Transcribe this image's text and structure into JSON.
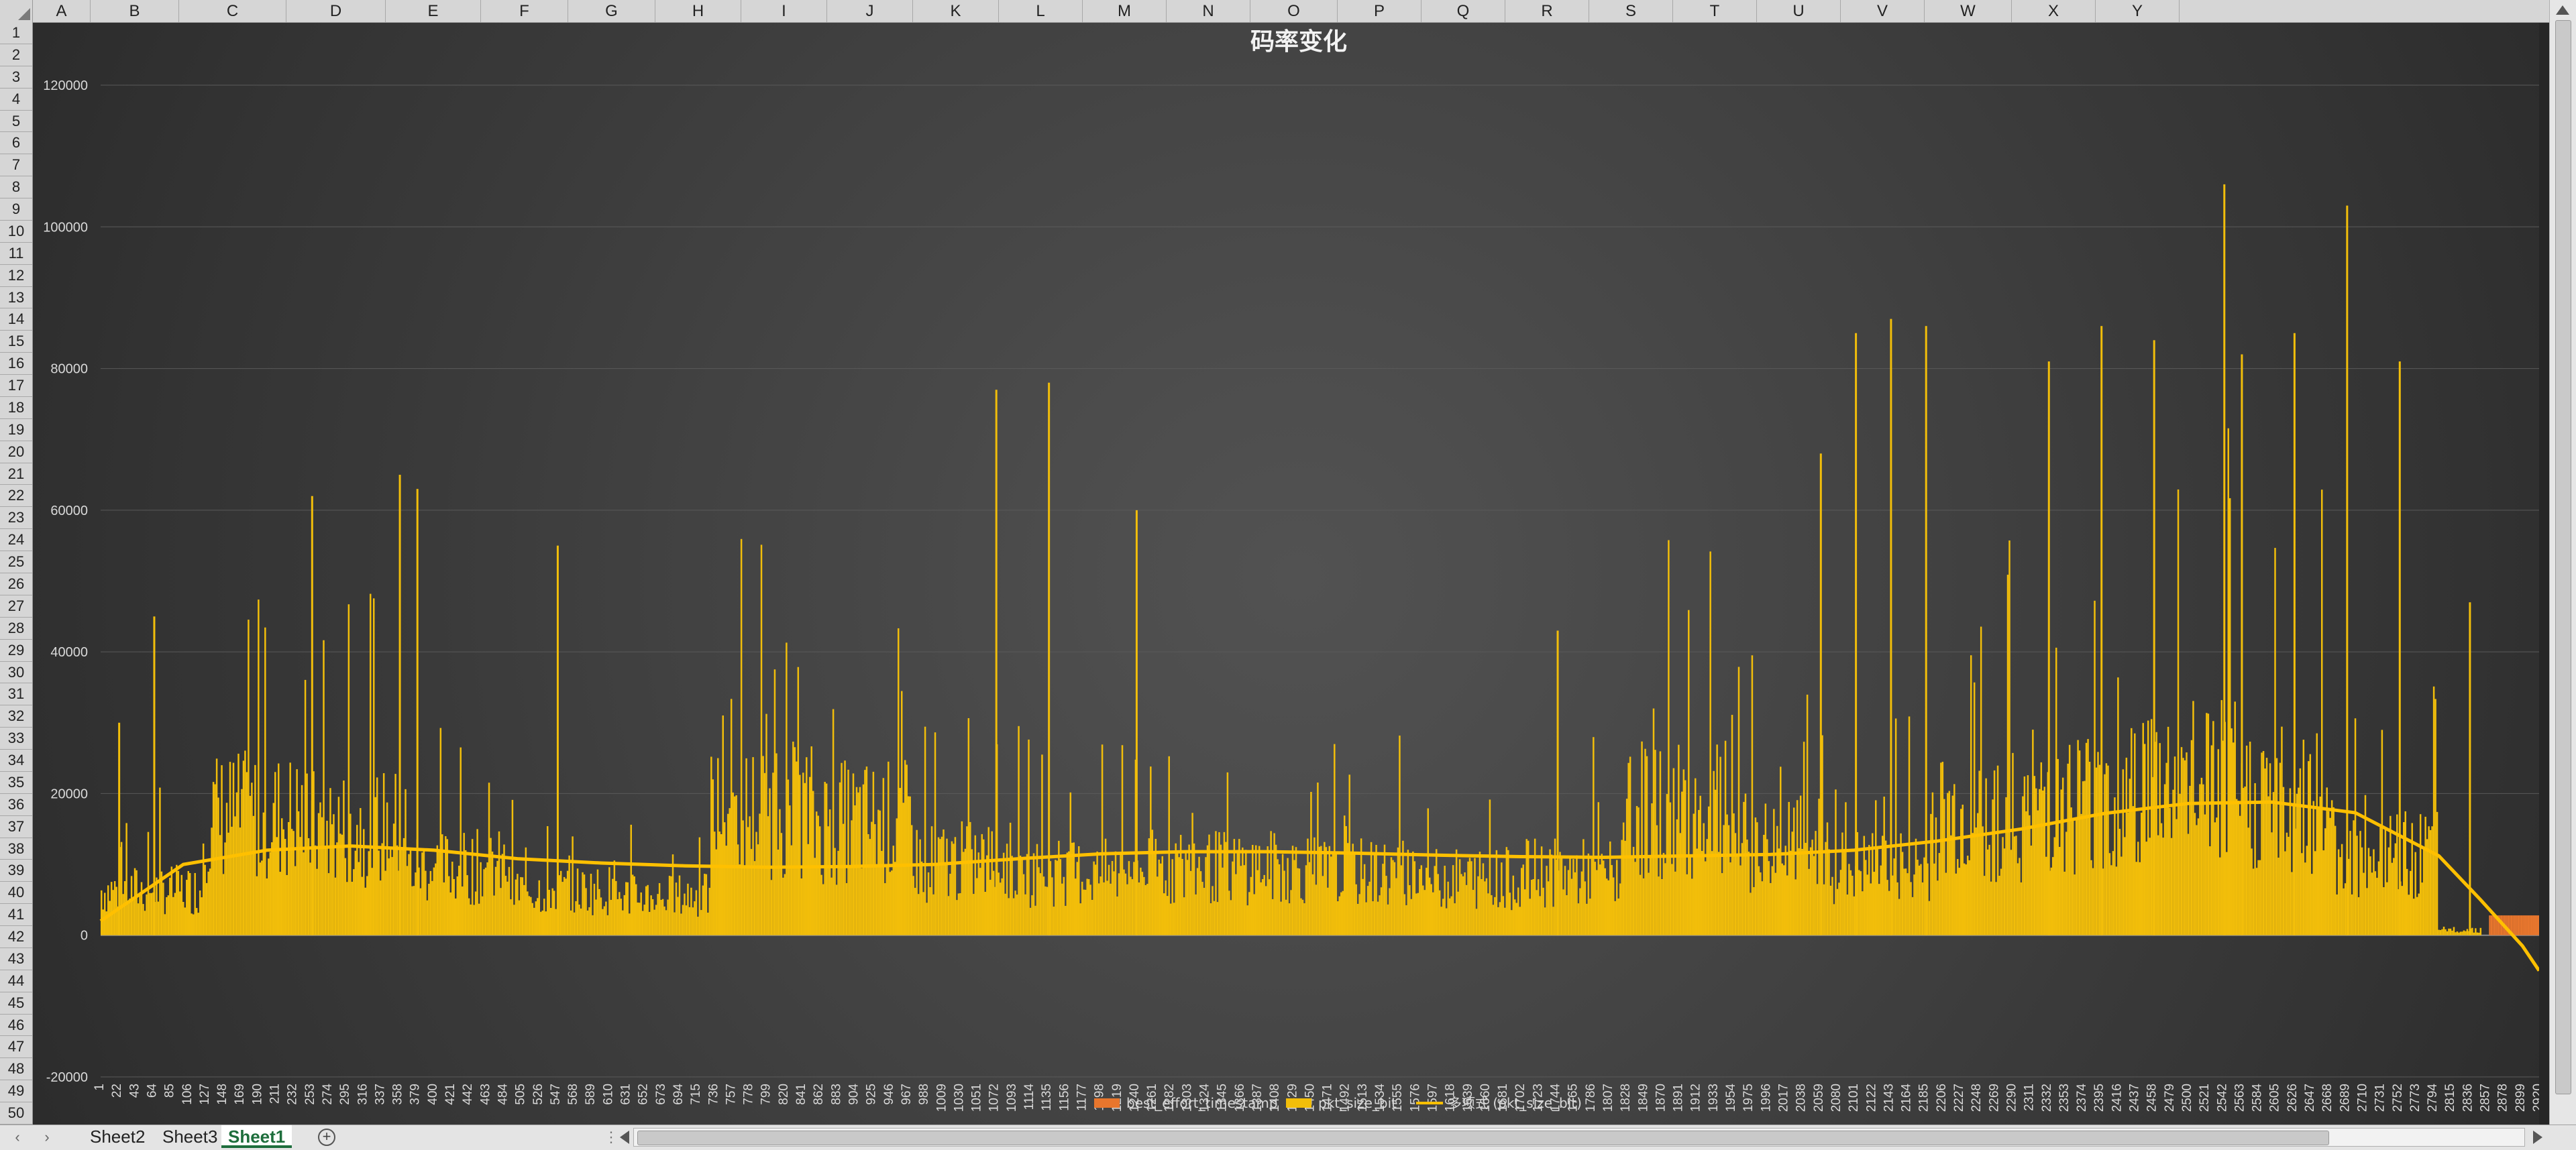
{
  "spreadsheet": {
    "columns": [
      "A",
      "B",
      "C",
      "D",
      "E",
      "F",
      "G",
      "H",
      "I",
      "J",
      "K",
      "L",
      "M",
      "N",
      "O",
      "P",
      "Q",
      "R",
      "S",
      "T",
      "U",
      "V",
      "W",
      "X",
      "Y"
    ],
    "rows": [
      "1",
      "2",
      "3",
      "4",
      "5",
      "6",
      "7",
      "8",
      "9",
      "10",
      "11",
      "12",
      "13",
      "14",
      "15",
      "16",
      "17",
      "18",
      "19",
      "20",
      "21",
      "22",
      "23",
      "24",
      "25",
      "26",
      "27",
      "28",
      "29",
      "30",
      "31",
      "32",
      "33",
      "34",
      "35",
      "36",
      "37",
      "38",
      "39",
      "40",
      "41",
      "42",
      "43",
      "44",
      "45",
      "46",
      "47",
      "48",
      "49",
      "50"
    ],
    "sheets": [
      "Sheet2",
      "Sheet3",
      "Sheet1"
    ],
    "active_sheet": "Sheet1"
  },
  "colors": {
    "bar": "#f2be0a",
    "best_effort": "#e8762d",
    "trend": "#ffc000"
  },
  "chart_data": {
    "type": "bar",
    "title": "码率变化",
    "xlabel": "",
    "ylabel": "",
    "ylim": [
      -20000,
      120000
    ],
    "yticks": [
      -20000,
      0,
      20000,
      40000,
      60000,
      80000,
      100000,
      120000
    ],
    "ytick_labels": [
      "-20000",
      "0",
      "20000",
      "40000",
      "60000",
      "80000",
      "100000",
      "120000"
    ],
    "xlim": [
      1,
      2920
    ],
    "x_tick_labels": [
      "1",
      "22",
      "43",
      "64",
      "85",
      "106",
      "127",
      "148",
      "169",
      "190",
      "211",
      "232",
      "253",
      "274",
      "295",
      "316",
      "337",
      "358",
      "379",
      "400",
      "421",
      "442",
      "463",
      "484",
      "505",
      "526",
      "547",
      "568",
      "589",
      "610",
      "631",
      "652",
      "673",
      "694",
      "715",
      "736",
      "757",
      "778",
      "799",
      "820",
      "841",
      "862",
      "883",
      "904",
      "925",
      "946",
      "967",
      "988",
      "1009",
      "1030",
      "1051",
      "1072",
      "1093",
      "1114",
      "1135",
      "1156",
      "1177",
      "1198",
      "1219",
      "1240",
      "1261",
      "1282",
      "1303",
      "1324",
      "1345",
      "1366",
      "1387",
      "1408",
      "1429",
      "1450",
      "1471",
      "1492",
      "1513",
      "1534",
      "1555",
      "1576",
      "1597",
      "1618",
      "1639",
      "1660",
      "1681",
      "1702",
      "1723",
      "1744",
      "1765",
      "1786",
      "1807",
      "1828",
      "1849",
      "1870",
      "1891",
      "1912",
      "1933",
      "1954",
      "1975",
      "1996",
      "2017",
      "2038",
      "2059",
      "2080",
      "2101",
      "2122",
      "2143",
      "2164",
      "2185",
      "2206",
      "2227",
      "2248",
      "2269",
      "2290",
      "2311",
      "2332",
      "2353",
      "2374",
      "2395",
      "2416",
      "2437",
      "2458",
      "2479",
      "2500",
      "2521",
      "2542",
      "2563",
      "2584",
      "2605",
      "2626",
      "2647",
      "2668",
      "2689",
      "2710",
      "2731",
      "2752",
      "2773",
      "2794",
      "2815",
      "2836",
      "2857",
      "2878",
      "2899",
      "2920"
    ],
    "legend_position": "bottom",
    "grid": true,
    "series": [
      {
        "name": "best_effort_timestamp",
        "type": "bar",
        "approx_values": [
          {
            "x_range": [
              2860,
              2920
            ],
            "value": 2800
          }
        ]
      },
      {
        "name": "pkt_size_bit",
        "type": "bar",
        "x_step": 21,
        "typical_values": [
          8000,
          21000,
          19000,
          12000,
          8000,
          7000,
          22000,
          20000,
          13000,
          11000,
          12000,
          12000,
          11000,
          10000,
          11000,
          22000,
          16000,
          12000,
          21000,
          24000,
          27000,
          24000,
          14000,
          1000
        ],
        "peaks": [
          {
            "x": 22,
            "value": 30000
          },
          {
            "x": 64,
            "value": 45000
          },
          {
            "x": 253,
            "value": 62000
          },
          {
            "x": 358,
            "value": 65000
          },
          {
            "x": 379,
            "value": 63000
          },
          {
            "x": 547,
            "value": 55000
          },
          {
            "x": 1072,
            "value": 77000
          },
          {
            "x": 1135,
            "value": 78000
          },
          {
            "x": 1240,
            "value": 60000
          },
          {
            "x": 1744,
            "value": 43000
          },
          {
            "x": 2059,
            "value": 68000
          },
          {
            "x": 2101,
            "value": 85000
          },
          {
            "x": 2143,
            "value": 87000
          },
          {
            "x": 2185,
            "value": 86000
          },
          {
            "x": 2332,
            "value": 81000
          },
          {
            "x": 2395,
            "value": 86000
          },
          {
            "x": 2458,
            "value": 84000
          },
          {
            "x": 2542,
            "value": 106000
          },
          {
            "x": 2563,
            "value": 82000
          },
          {
            "x": 2626,
            "value": 85000
          },
          {
            "x": 2689,
            "value": 103000
          },
          {
            "x": 2752,
            "value": 81000
          },
          {
            "x": 2836,
            "value": 47000
          }
        ]
      },
      {
        "name": "多项式 (pkt_size_bit)",
        "type": "line",
        "x": [
          1,
          100,
          200,
          300,
          400,
          500,
          600,
          700,
          800,
          900,
          1000,
          1100,
          1200,
          1300,
          1400,
          1500,
          1600,
          1700,
          1800,
          1900,
          2000,
          2100,
          2200,
          2300,
          2400,
          2500,
          2600,
          2700,
          2800,
          2850,
          2900,
          2920
        ],
        "y": [
          2000,
          10000,
          12000,
          12600,
          12000,
          10800,
          10200,
          9800,
          9600,
          9700,
          10000,
          10800,
          11500,
          11800,
          11800,
          11600,
          11300,
          11100,
          11000,
          11200,
          11400,
          12000,
          13300,
          15000,
          17200,
          18600,
          18800,
          17300,
          11200,
          5000,
          -1500,
          -5000
        ]
      }
    ]
  }
}
